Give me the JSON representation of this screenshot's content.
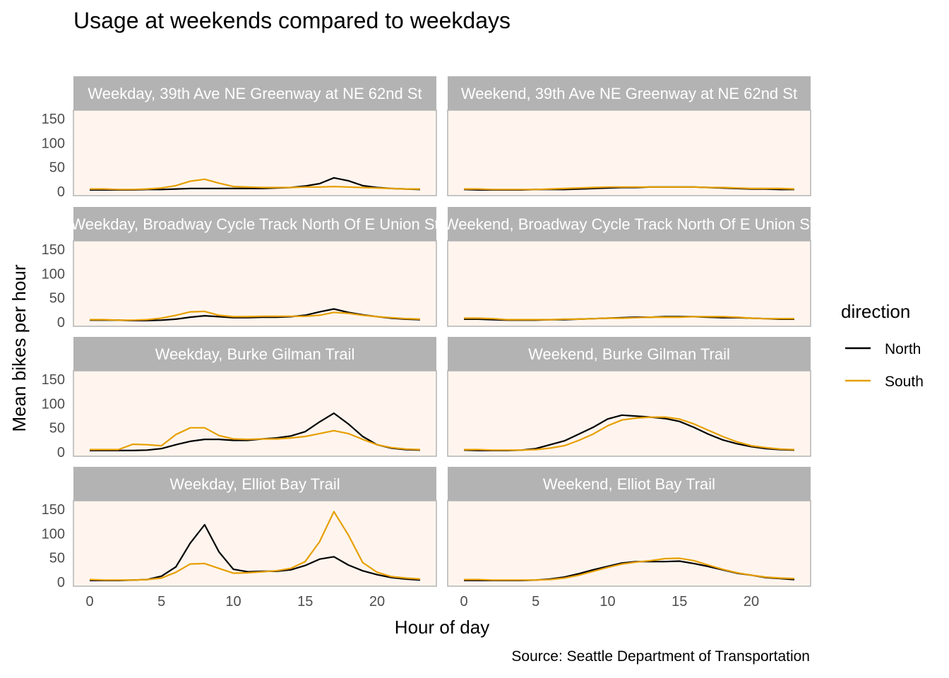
{
  "chart_data": {
    "type": "line",
    "title": "Usage at weekends compared to weekdays",
    "xlabel": "Hour of day",
    "ylabel": "Mean bikes per hour",
    "caption": "Source: Seattle Department of Transportation",
    "xlim": [
      0,
      23
    ],
    "ylim": [
      0,
      150
    ],
    "x_ticks": [
      0,
      5,
      10,
      15,
      20
    ],
    "y_ticks": [
      0,
      50,
      100,
      150
    ],
    "legend": {
      "title": "direction",
      "position": "right",
      "entries": [
        {
          "name": "North",
          "color": "#000000"
        },
        {
          "name": "South",
          "color": "#E69F00"
        }
      ]
    },
    "panel_background": "#FFF5EE",
    "strip_color": "#B3B3B3",
    "x": [
      0,
      1,
      2,
      3,
      4,
      5,
      6,
      7,
      8,
      9,
      10,
      11,
      12,
      13,
      14,
      15,
      16,
      17,
      18,
      19,
      20,
      21,
      22,
      23
    ],
    "panels": [
      {
        "label": "Weekday, 39th Ave NE Greenway at NE 62nd St",
        "series": [
          {
            "name": "North",
            "values": [
              3,
              3,
              3,
              3,
              4,
              4,
              5,
              6,
              6,
              6,
              6,
              6,
              6,
              7,
              8,
              11,
              16,
              28,
              22,
              12,
              8,
              6,
              5,
              4
            ]
          },
          {
            "name": "South",
            "values": [
              5,
              5,
              4,
              4,
              5,
              7,
              12,
              21,
              25,
              17,
              10,
              9,
              8,
              8,
              8,
              9,
              9,
              10,
              9,
              8,
              7,
              6,
              5,
              5
            ]
          }
        ]
      },
      {
        "label": "Weekend, 39th Ave NE Greenway at NE 62nd St",
        "series": [
          {
            "name": "North",
            "values": [
              4,
              3,
              3,
              3,
              3,
              4,
              4,
              4,
              5,
              6,
              7,
              8,
              8,
              9,
              9,
              9,
              9,
              8,
              7,
              6,
              5,
              5,
              4,
              4
            ]
          },
          {
            "name": "South",
            "values": [
              5,
              5,
              4,
              4,
              4,
              4,
              5,
              6,
              7,
              8,
              9,
              9,
              9,
              9,
              9,
              9,
              9,
              8,
              8,
              7,
              6,
              6,
              6,
              5
            ]
          }
        ]
      },
      {
        "label": "Weekday, Broadway Cycle Track North Of E Union St",
        "series": [
          {
            "name": "North",
            "values": [
              4,
              4,
              4,
              3,
              3,
              4,
              6,
              10,
              13,
              11,
              9,
              9,
              10,
              10,
              11,
              14,
              21,
              27,
              20,
              15,
              11,
              8,
              6,
              5
            ]
          },
          {
            "name": "South",
            "values": [
              5,
              5,
              4,
              4,
              5,
              8,
              14,
              21,
              22,
              14,
              11,
              11,
              12,
              12,
              12,
              12,
              14,
              20,
              18,
              14,
              11,
              9,
              7,
              6
            ]
          }
        ]
      },
      {
        "label": "Weekend, Broadway Cycle Track North Of E Union St",
        "series": [
          {
            "name": "North",
            "values": [
              6,
              6,
              5,
              4,
              4,
              4,
              5,
              5,
              6,
              7,
              8,
              9,
              10,
              10,
              11,
              11,
              11,
              10,
              9,
              9,
              8,
              7,
              6,
              6
            ]
          },
          {
            "name": "South",
            "values": [
              8,
              8,
              7,
              5,
              5,
              5,
              5,
              6,
              6,
              7,
              8,
              8,
              9,
              10,
              10,
              10,
              11,
              11,
              11,
              10,
              8,
              7,
              7,
              7
            ]
          }
        ]
      },
      {
        "label": "Weekday, Burke Gilman Trail",
        "series": [
          {
            "name": "North",
            "values": [
              3,
              3,
              3,
              3,
              4,
              7,
              15,
              22,
              26,
              26,
              24,
              24,
              27,
              29,
              33,
              42,
              62,
              80,
              58,
              32,
              15,
              8,
              5,
              4
            ]
          },
          {
            "name": "South",
            "values": [
              5,
              5,
              5,
              16,
              15,
              13,
              36,
              50,
              50,
              34,
              27,
              26,
              27,
              27,
              29,
              32,
              38,
              44,
              38,
              26,
              15,
              9,
              6,
              5
            ]
          }
        ]
      },
      {
        "label": "Weekend, Burke Gilman Trail",
        "series": [
          {
            "name": "North",
            "values": [
              4,
              3,
              3,
              3,
              4,
              7,
              15,
              23,
              37,
              51,
              68,
              76,
              74,
              72,
              69,
              63,
              51,
              37,
              25,
              17,
              11,
              7,
              5,
              4
            ]
          },
          {
            "name": "South",
            "values": [
              5,
              5,
              4,
              4,
              4,
              5,
              8,
              13,
              24,
              37,
              54,
              66,
              70,
              72,
              72,
              68,
              58,
              45,
              32,
              21,
              13,
              9,
              6,
              5
            ]
          }
        ]
      },
      {
        "label": "Weekday, Elliot Bay Trail",
        "series": [
          {
            "name": "North",
            "values": [
              3,
              3,
              3,
              4,
              5,
              12,
              31,
              80,
              118,
              62,
              26,
              21,
              22,
              22,
              25,
              34,
              47,
              52,
              35,
              23,
              15,
              9,
              6,
              4
            ]
          },
          {
            "name": "South",
            "values": [
              5,
              4,
              4,
              4,
              5,
              8,
              20,
              37,
              38,
              28,
              18,
              19,
              21,
              23,
              28,
              42,
              83,
              145,
              97,
              40,
              20,
              11,
              8,
              6
            ]
          }
        ]
      },
      {
        "label": "Weekend, Elliot Bay Trail",
        "series": [
          {
            "name": "North",
            "values": [
              3,
              3,
              3,
              3,
              3,
              4,
              6,
              10,
              17,
              25,
              32,
              39,
              42,
              42,
              42,
              43,
              38,
              32,
              25,
              18,
              14,
              9,
              7,
              5
            ]
          },
          {
            "name": "South",
            "values": [
              5,
              5,
              4,
              4,
              4,
              4,
              5,
              8,
              14,
              22,
              30,
              37,
              41,
              44,
              48,
              49,
              44,
              35,
              26,
              19,
              14,
              10,
              8,
              7
            ]
          }
        ]
      }
    ]
  }
}
